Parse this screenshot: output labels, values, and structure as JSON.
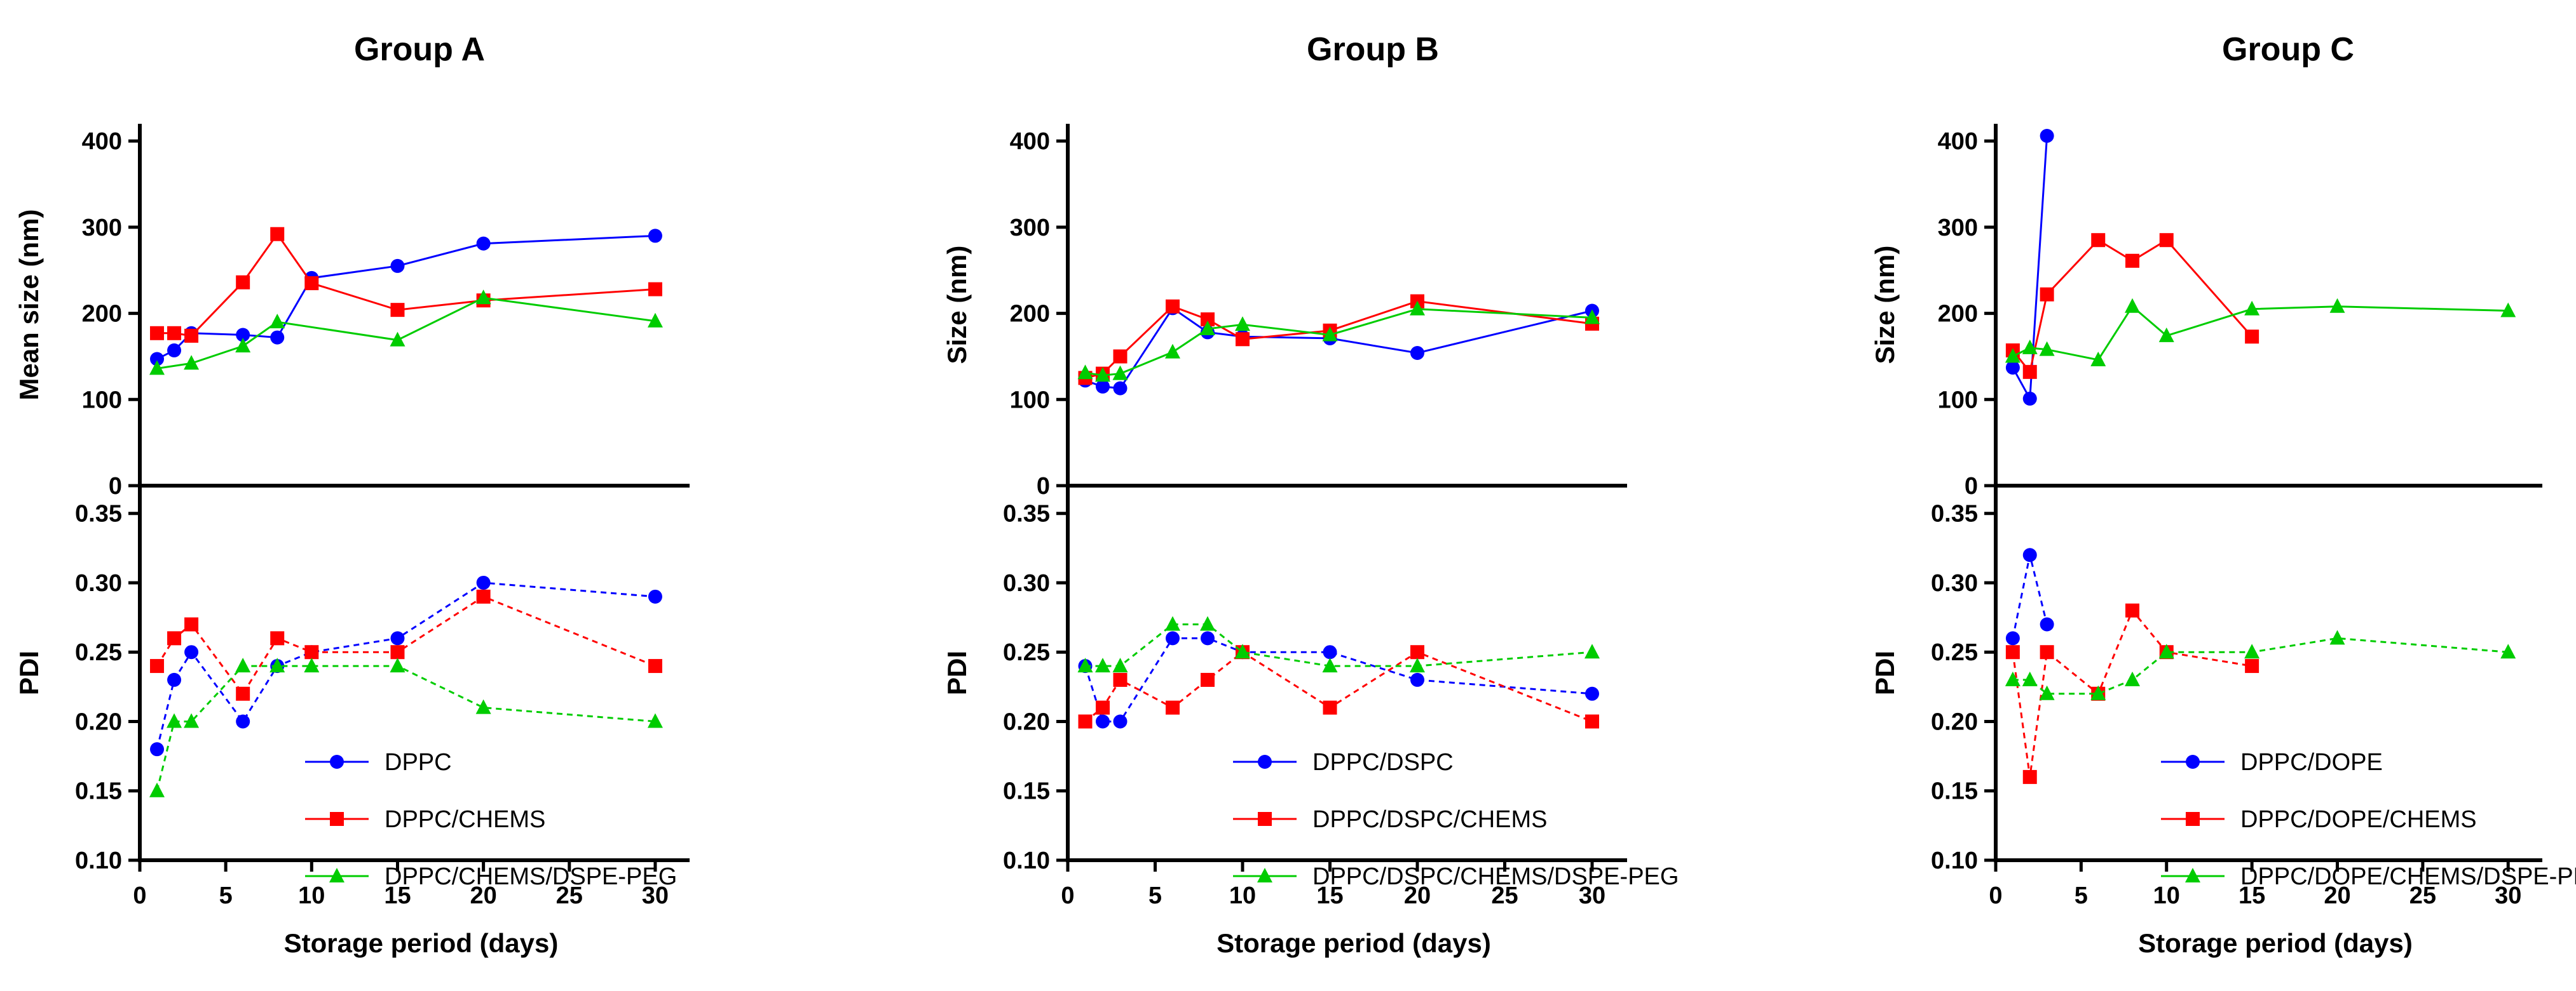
{
  "chart_data": [
    {
      "type": "line",
      "title": "Group A",
      "xlabel": "Storage period (days)",
      "xlim": [
        0,
        32
      ],
      "xticks": [
        0,
        5,
        10,
        15,
        20,
        25,
        30
      ],
      "size_panel": {
        "ylabel": "Mean size (nm)",
        "ylim": [
          0,
          420
        ],
        "yticks": [
          0,
          100,
          200,
          300,
          400
        ],
        "series": [
          {
            "name": "DPPC",
            "x": [
              1,
              2,
              3,
              6,
              8,
              10,
              15,
              20,
              30
            ],
            "values": [
              147,
              157,
              177,
              175,
              172,
              241,
              255,
              281,
              290
            ]
          },
          {
            "name": "DPPC/CHEMS",
            "x": [
              1,
              2,
              3,
              6,
              8,
              10,
              15,
              20,
              30
            ],
            "values": [
              177,
              177,
              174,
              236,
              292,
              235,
              204,
              215,
              228
            ]
          },
          {
            "name": "DPPC/CHEMS/DSPE-PEG",
            "x": [
              1,
              3,
              6,
              8,
              15,
              20,
              30
            ],
            "values": [
              136,
              142,
              162,
              190,
              169,
              218,
              191
            ]
          }
        ]
      },
      "pdi_panel": {
        "ylabel": "PDI",
        "ylim": [
          0.1,
          0.37
        ],
        "yticks": [
          "0.10",
          "0.15",
          "0.20",
          "0.25",
          "0.30",
          "0.35"
        ],
        "series": [
          {
            "name": "DPPC",
            "x": [
              1,
              2,
              3,
              6,
              8,
              10,
              15,
              20,
              30
            ],
            "values": [
              0.18,
              0.23,
              0.25,
              0.2,
              0.24,
              0.25,
              0.26,
              0.3,
              0.29
            ]
          },
          {
            "name": "DPPC/CHEMS",
            "x": [
              1,
              2,
              3,
              6,
              8,
              10,
              15,
              20,
              30
            ],
            "values": [
              0.24,
              0.26,
              0.27,
              0.22,
              0.26,
              0.25,
              0.25,
              0.29,
              0.24
            ]
          },
          {
            "name": "DPPC/CHEMS/DSPE-PEG",
            "x": [
              1,
              2,
              3,
              6,
              8,
              10,
              15,
              20,
              30
            ],
            "values": [
              0.15,
              0.2,
              0.2,
              0.24,
              0.24,
              0.24,
              0.24,
              0.21,
              0.2
            ]
          }
        ]
      },
      "legend": [
        "DPPC",
        "DPPC/CHEMS",
        "DPPC/CHEMS/DSPE-PEG"
      ]
    },
    {
      "type": "line",
      "title": "Group B",
      "xlabel": "Storage period (days)",
      "xlim": [
        0,
        32
      ],
      "xticks": [
        0,
        5,
        10,
        15,
        20,
        25,
        30
      ],
      "size_panel": {
        "ylabel": "Size (nm)",
        "ylim": [
          0,
          420
        ],
        "yticks": [
          0,
          100,
          200,
          300,
          400
        ],
        "series": [
          {
            "name": "DPPC/DSPC",
            "x": [
              1,
              2,
              3,
              6,
              8,
              10,
              15,
              20,
              30
            ],
            "values": [
              122,
              115,
              113,
              206,
              178,
              173,
              171,
              154,
              203
            ]
          },
          {
            "name": "DPPC/DSPC/CHEMS",
            "x": [
              1,
              2,
              3,
              6,
              8,
              10,
              15,
              20,
              30
            ],
            "values": [
              125,
              130,
              150,
              208,
              193,
              170,
              180,
              214,
              188
            ]
          },
          {
            "name": "DPPC/DSPC/CHEMS/DSPE-PEG",
            "x": [
              1,
              2,
              3,
              6,
              8,
              10,
              15,
              20,
              30
            ],
            "values": [
              131,
              128,
              130,
              155,
              182,
              187,
              175,
              205,
              195
            ]
          }
        ]
      },
      "pdi_panel": {
        "ylabel": "PDI",
        "ylim": [
          0.1,
          0.37
        ],
        "yticks": [
          "0.10",
          "0.15",
          "0.20",
          "0.25",
          "0.30",
          "0.35"
        ],
        "series": [
          {
            "name": "DPPC/DSPC",
            "x": [
              1,
              2,
              3,
              6,
              8,
              10,
              15,
              20,
              30
            ],
            "values": [
              0.24,
              0.2,
              0.2,
              0.26,
              0.26,
              0.25,
              0.25,
              0.23,
              0.22
            ]
          },
          {
            "name": "DPPC/DSPC/CHEMS",
            "x": [
              1,
              2,
              3,
              6,
              8,
              10,
              15,
              20,
              30
            ],
            "values": [
              0.2,
              0.21,
              0.23,
              0.21,
              0.23,
              0.25,
              0.21,
              0.25,
              0.2
            ]
          },
          {
            "name": "DPPC/DSPC/CHEMS/DSPE-PEG",
            "x": [
              1,
              2,
              3,
              6,
              8,
              10,
              15,
              20,
              30
            ],
            "values": [
              0.24,
              0.24,
              0.24,
              0.27,
              0.27,
              0.25,
              0.24,
              0.24,
              0.25
            ]
          }
        ]
      },
      "legend": [
        "DPPC/DSPC",
        "DPPC/DSPC/CHEMS",
        "DPPC/DSPC/CHEMS/DSPE-PEG"
      ]
    },
    {
      "type": "line",
      "title": "Group C",
      "xlabel": "Storage period (days)",
      "xlim": [
        0,
        32
      ],
      "xticks": [
        0,
        5,
        10,
        15,
        20,
        25,
        30
      ],
      "size_panel": {
        "ylabel": "Size (nm)",
        "ylim": [
          0,
          420
        ],
        "yticks": [
          0,
          100,
          200,
          300,
          400
        ],
        "series": [
          {
            "name": "DPPC/DOPE",
            "x": [
              1,
              2,
              3
            ],
            "values": [
              137,
              101,
              406
            ]
          },
          {
            "name": "DPPC/DOPE/CHEMS",
            "x": [
              1,
              2,
              3,
              6,
              8,
              10,
              15
            ],
            "values": [
              157,
              132,
              222,
              285,
              261,
              285,
              173
            ]
          },
          {
            "name": "DPPC/DOPE/CHEMS/DSPE-PEG",
            "x": [
              1,
              2,
              3,
              6,
              8,
              10,
              15,
              20,
              30
            ],
            "values": [
              150,
              160,
              158,
              146,
              208,
              174,
              205,
              208,
              203
            ]
          }
        ]
      },
      "pdi_panel": {
        "ylabel": "PDI",
        "ylim": [
          0.1,
          0.37
        ],
        "yticks": [
          "0.10",
          "0.15",
          "0.20",
          "0.25",
          "0.30",
          "0.35"
        ],
        "series": [
          {
            "name": "DPPC/DOPE",
            "x": [
              1,
              2,
              3
            ],
            "values": [
              0.26,
              0.32,
              0.27
            ]
          },
          {
            "name": "DPPC/DOPE/CHEMS",
            "x": [
              1,
              2,
              3,
              6,
              8,
              10,
              15
            ],
            "values": [
              0.25,
              0.16,
              0.25,
              0.22,
              0.28,
              0.25,
              0.24
            ]
          },
          {
            "name": "DPPC/DOPE/CHEMS/DSPE-PEG",
            "x": [
              1,
              2,
              3,
              6,
              8,
              10,
              15,
              20,
              30
            ],
            "values": [
              0.23,
              0.23,
              0.22,
              0.22,
              0.23,
              0.25,
              0.25,
              0.26,
              0.25
            ]
          }
        ]
      },
      "legend": [
        "DPPC/DOPE",
        "DPPC/DOPE/CHEMS",
        "DPPC/DOPE/CHEMS/DSPE-PEG"
      ]
    }
  ],
  "series_styles": [
    {
      "color": "#0000ff",
      "marker": "circle"
    },
    {
      "color": "#ff0000",
      "marker": "square"
    },
    {
      "color": "#00cc00",
      "marker": "triangle"
    }
  ]
}
